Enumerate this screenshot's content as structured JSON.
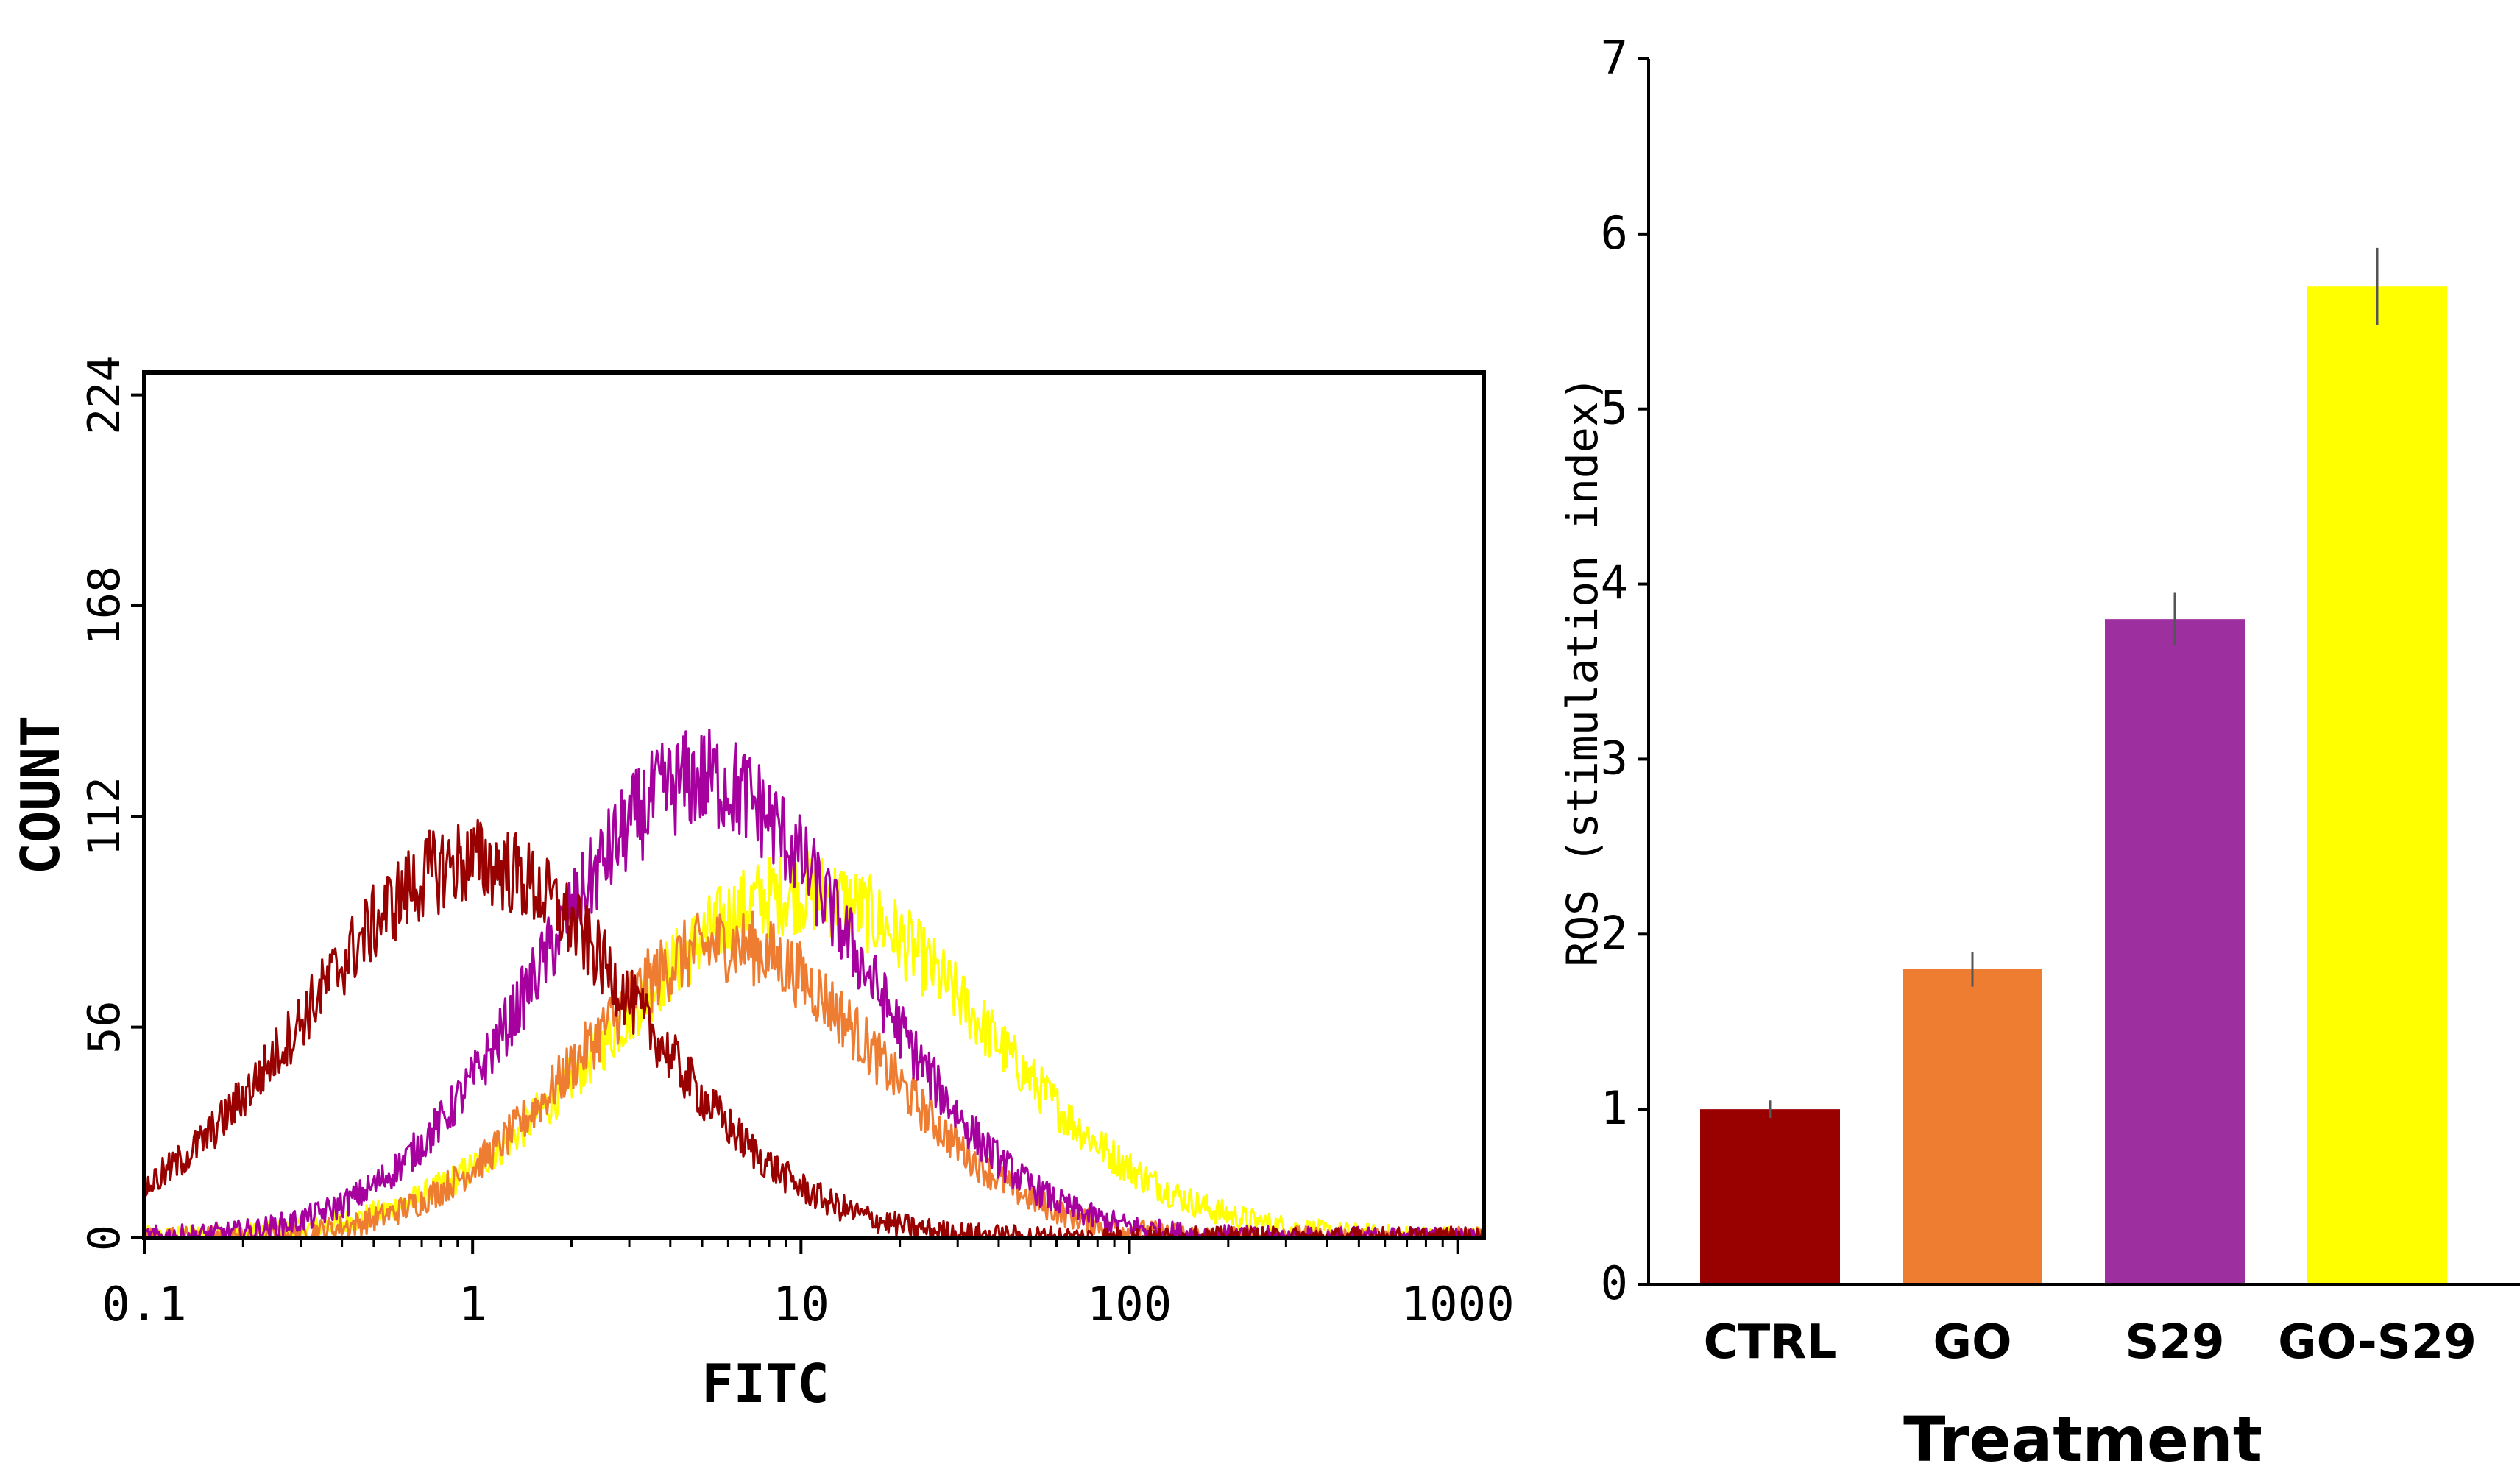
{
  "chart_data": [
    {
      "type": "line",
      "title": "",
      "xlabel": "FITC",
      "ylabel": "COUNT",
      "x_scale": "log",
      "xlim": [
        0.1,
        1200
      ],
      "ylim": [
        0,
        230
      ],
      "x_ticks": [
        "0.1",
        "1",
        "10",
        "100",
        "1000"
      ],
      "y_ticks": [
        "0",
        "56",
        "112",
        "168",
        "224"
      ],
      "grid": false,
      "series": [
        {
          "name": "CTRL",
          "color": "#990000",
          "peak_x": 1.0,
          "peak_y": 100,
          "width": 0.5
        },
        {
          "name": "GO",
          "color": "#ef7d31",
          "peak_x": 6.0,
          "peak_y": 78,
          "width": 0.46
        },
        {
          "name": "S29",
          "color": "#a6009f",
          "peak_x": 5.0,
          "peak_y": 122,
          "width": 0.48
        },
        {
          "name": "GO-S29",
          "color": "#ffff00",
          "peak_x": 10.0,
          "peak_y": 92,
          "width": 0.56
        }
      ]
    },
    {
      "type": "bar",
      "title": "",
      "xlabel": "Treatment",
      "ylabel": "ROS (stimulation index)",
      "categories": [
        "CTRL",
        "GO",
        "S29",
        "GO-S29"
      ],
      "values": [
        1.0,
        1.8,
        3.8,
        5.7
      ],
      "errors": [
        0.05,
        0.1,
        0.15,
        0.22
      ],
      "colors": [
        "#990000",
        "#ef7d31",
        "#9e2f9e",
        "#ffff00"
      ],
      "ylim": [
        0,
        7
      ],
      "y_ticks": [
        "0",
        "1",
        "2",
        "3",
        "4",
        "5",
        "6",
        "7"
      ]
    }
  ]
}
